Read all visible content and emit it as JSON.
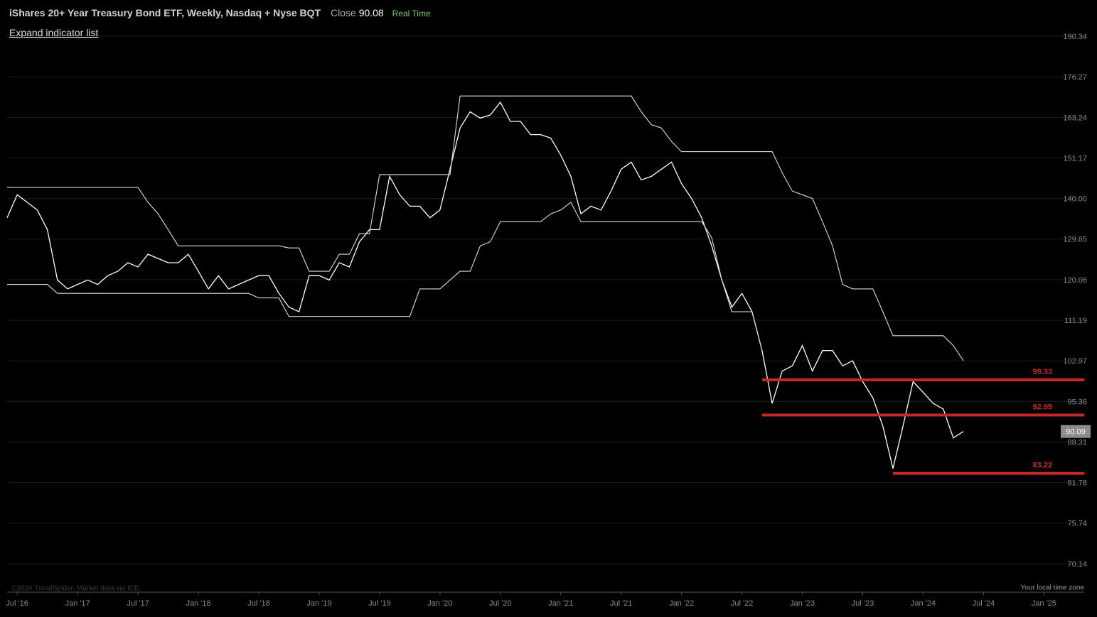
{
  "header": {
    "title": "iShares 20+ Year Treasury Bond ETF, Weekly, Nasdaq + Nyse BQT",
    "close_label": "Close",
    "close_value": 90.08,
    "status": "Real Time",
    "link": "Expand indicator list"
  },
  "footer": {
    "copyright": "©2024 TrendSpider. Market data via ICE.",
    "timezone": "Your local time zone"
  },
  "chart_data": {
    "type": "line",
    "log_scale": true,
    "grid": true,
    "xlim": [
      "2016-06",
      "2025-05"
    ],
    "xticks": [
      {
        "value": "2016-07",
        "label": "Jul '16"
      },
      {
        "value": "2017-01",
        "label": "Jan '17"
      },
      {
        "value": "2017-07",
        "label": "Jul '17"
      },
      {
        "value": "2018-01",
        "label": "Jan '18"
      },
      {
        "value": "2018-07",
        "label": "Jul '18"
      },
      {
        "value": "2019-01",
        "label": "Jan '19"
      },
      {
        "value": "2019-07",
        "label": "Jul '19"
      },
      {
        "value": "2020-01",
        "label": "Jan '20"
      },
      {
        "value": "2020-07",
        "label": "Jul '20"
      },
      {
        "value": "2021-01",
        "label": "Jan '21"
      },
      {
        "value": "2021-07",
        "label": "Jul '21"
      },
      {
        "value": "2022-01",
        "label": "Jan '22"
      },
      {
        "value": "2022-07",
        "label": "Jul '22"
      },
      {
        "value": "2023-01",
        "label": "Jan '23"
      },
      {
        "value": "2023-07",
        "label": "Jul '23"
      },
      {
        "value": "2024-01",
        "label": "Jan '24"
      },
      {
        "value": "2024-07",
        "label": "Jul '24"
      },
      {
        "value": "2025-01",
        "label": "Jan '25"
      }
    ],
    "ylim": [
      66.47,
      195.8
    ],
    "yticks": [
      70.14,
      75.74,
      81.78,
      88.31,
      95.36,
      102.97,
      111.19,
      120.06,
      {
        "value": 129.65,
        "label": "129.65"
      },
      {
        "value": 140,
        "label": "140.00"
      },
      151.17,
      163.24,
      176.27,
      190.34
    ],
    "x": [
      "2016-06",
      "2016-07",
      "2016-08",
      "2016-09",
      "2016-10",
      "2016-11",
      "2016-12",
      "2017-01",
      "2017-02",
      "2017-03",
      "2017-04",
      "2017-05",
      "2017-06",
      "2017-07",
      "2017-08",
      "2017-09",
      "2017-10",
      "2017-11",
      "2017-12",
      "2018-01",
      "2018-02",
      "2018-03",
      "2018-04",
      "2018-05",
      "2018-06",
      "2018-07",
      "2018-08",
      "2018-09",
      "2018-10",
      "2018-11",
      "2018-12",
      "2019-01",
      "2019-02",
      "2019-03",
      "2019-04",
      "2019-05",
      "2019-06",
      "2019-07",
      "2019-08",
      "2019-09",
      "2019-10",
      "2019-11",
      "2019-12",
      "2020-01",
      "2020-02",
      "2020-03",
      "2020-04",
      "2020-05",
      "2020-06",
      "2020-07",
      "2020-08",
      "2020-09",
      "2020-10",
      "2020-11",
      "2020-12",
      "2021-01",
      "2021-02",
      "2021-03",
      "2021-04",
      "2021-05",
      "2021-06",
      "2021-07",
      "2021-08",
      "2021-09",
      "2021-10",
      "2021-11",
      "2021-12",
      "2022-01",
      "2022-02",
      "2022-03",
      "2022-04",
      "2022-05",
      "2022-06",
      "2022-07",
      "2022-08",
      "2022-09",
      "2022-10",
      "2022-11",
      "2022-12",
      "2023-01",
      "2023-02",
      "2023-03",
      "2023-04",
      "2023-05",
      "2023-06",
      "2023-07",
      "2023-08",
      "2023-09",
      "2023-10",
      "2023-11",
      "2023-12",
      "2024-01",
      "2024-02",
      "2024-03",
      "2024-04",
      "2024-05"
    ],
    "series": [
      {
        "color": "#ffffff",
        "values": [
          135,
          141,
          139,
          137,
          132,
          120,
          118,
          119,
          120,
          119,
          121,
          122,
          124,
          123,
          126,
          125,
          124,
          124,
          126,
          122,
          118,
          121,
          118,
          119,
          120,
          121,
          121,
          117,
          114,
          113,
          121,
          121,
          120,
          124,
          123,
          129,
          132,
          132,
          146,
          141,
          138,
          138,
          135,
          137,
          148,
          160,
          165,
          163,
          164,
          168,
          162,
          162,
          158,
          158,
          157,
          152,
          146,
          136,
          138,
          137,
          142,
          148,
          150,
          145,
          146,
          148,
          150,
          144,
          140,
          135,
          128,
          120,
          114,
          117,
          113,
          105,
          95,
          101,
          102,
          106,
          101,
          105,
          105,
          102,
          103,
          99,
          96,
          91,
          84,
          91,
          99,
          97,
          95,
          94,
          89,
          90.09
        ]
      },
      {
        "color": "#dddddd",
        "values": [
          143,
          143,
          143,
          143,
          143,
          143,
          143,
          143,
          143,
          143,
          143,
          143,
          143,
          143,
          139,
          136,
          132,
          128,
          128,
          128,
          128,
          128,
          128,
          128,
          128,
          128,
          128,
          128,
          127.5,
          127.5,
          122,
          122,
          122,
          126,
          126,
          131,
          131,
          146.5,
          146.5,
          146.5,
          146.5,
          146.5,
          146.5,
          146.5,
          146.5,
          170,
          170,
          170,
          170,
          170,
          170,
          170,
          170,
          170,
          170,
          170,
          170,
          170,
          170,
          170,
          170,
          170,
          170,
          165,
          161,
          160,
          156,
          153,
          153,
          153,
          153,
          153,
          153,
          153,
          153,
          153,
          153,
          147,
          142,
          141,
          140,
          134,
          128,
          119,
          118,
          118,
          118,
          113,
          108,
          108,
          108,
          108,
          108,
          108,
          106,
          103
        ]
      },
      {
        "color": "#dddddd",
        "values": [
          119,
          119,
          119,
          119,
          119,
          117,
          117,
          117,
          117,
          117,
          117,
          117,
          117,
          117,
          117,
          117,
          117,
          117,
          117,
          117,
          117,
          117,
          117,
          117,
          117,
          116,
          116,
          116,
          112,
          112,
          112,
          112,
          112,
          112,
          112,
          112,
          112,
          112,
          112,
          112,
          112,
          118,
          118,
          118,
          120,
          122,
          122,
          128,
          129,
          134,
          134,
          134,
          134,
          134,
          136,
          137,
          139,
          134,
          134,
          134,
          134,
          134,
          134,
          134,
          134,
          134,
          134,
          134,
          134,
          134,
          130,
          120,
          113,
          113,
          113,
          105,
          null,
          null,
          null,
          null,
          null,
          null,
          null,
          null,
          null,
          null,
          null,
          null,
          null,
          null,
          null,
          null,
          null,
          null,
          null,
          null
        ]
      }
    ],
    "levels": [
      {
        "value": 99.33,
        "start": "2022-09",
        "color": "#c62828"
      },
      {
        "value": 92.95,
        "start": "2022-09",
        "color": "#c62828"
      },
      {
        "value": 83.22,
        "start": "2023-10",
        "color": "#c62828"
      }
    ]
  }
}
